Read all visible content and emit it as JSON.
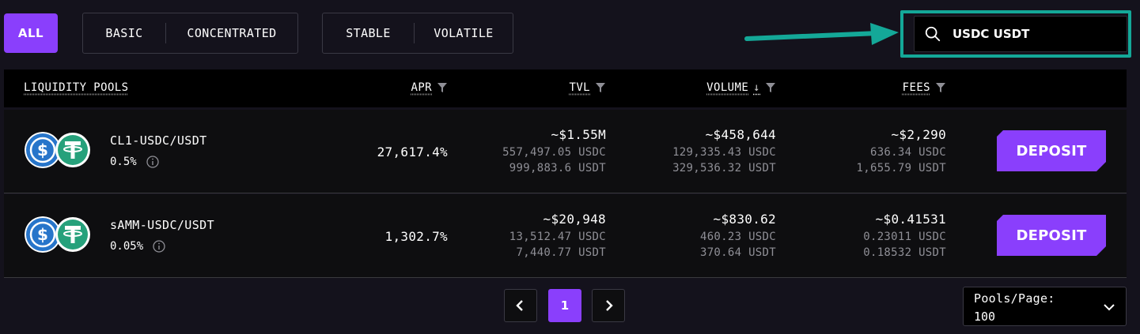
{
  "filters": {
    "all_label": "ALL",
    "pool_type": [
      "BASIC",
      "CONCENTRATED"
    ],
    "volatility": [
      "STABLE",
      "VOLATILE"
    ]
  },
  "search": {
    "value": "USDC USDT",
    "icon": "search-icon",
    "highlight_color": "#14a898"
  },
  "table": {
    "headers": {
      "pools": "LIQUIDITY POOLS",
      "apr": "APR",
      "tvl": "TVL",
      "volume": "VOLUME",
      "fees": "FEES"
    },
    "sorted_by": "volume-desc",
    "rows": [
      {
        "name": "CL1-USDC/USDT",
        "fee": "0.5%",
        "apr": "27,617.4%",
        "tvl": {
          "total": "~$1.55M",
          "a": "557,497.05 USDC",
          "b": "999,883.6 USDT"
        },
        "volume": {
          "total": "~$458,644",
          "a": "129,335.43 USDC",
          "b": "329,536.32 USDT"
        },
        "fees": {
          "total": "~$2,290",
          "a": "636.34 USDC",
          "b": "1,655.79 USDT"
        },
        "action": "DEPOSIT"
      },
      {
        "name": "sAMM-USDC/USDT",
        "fee": "0.05%",
        "apr": "1,302.7%",
        "tvl": {
          "total": "~$20,948",
          "a": "13,512.47 USDC",
          "b": "7,440.77 USDT"
        },
        "volume": {
          "total": "~$830.62",
          "a": "460.23 USDC",
          "b": "370.64 USDT"
        },
        "fees": {
          "total": "~$0.41531",
          "a": "0.23011 USDC",
          "b": "0.18532 USDT"
        },
        "action": "DEPOSIT"
      }
    ]
  },
  "pagination": {
    "current_page": "1",
    "pools_per_page_label": "Pools/Page:",
    "pools_per_page_value": "100"
  },
  "colors": {
    "accent": "#8a3ffc",
    "background": "#14121c",
    "usdc": "#2775ca",
    "usdt": "#26a17b"
  }
}
